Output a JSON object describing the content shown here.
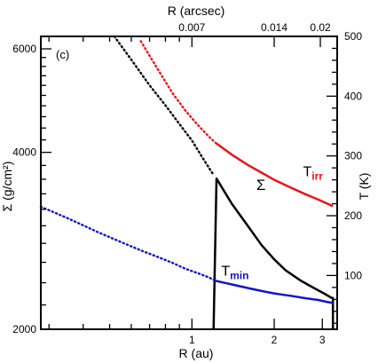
{
  "chart_data": {
    "type": "line",
    "panel_label": "(c)",
    "x_axis_bottom": {
      "label": "R (au)",
      "scale": "log",
      "range": [
        0.28,
        3.4
      ],
      "ticks": [
        {
          "value": 1,
          "label": "1"
        },
        {
          "value": 2,
          "label": "2"
        },
        {
          "value": 3,
          "label": "3"
        }
      ]
    },
    "x_axis_top": {
      "label": "R (arcsec)",
      "ticks": [
        {
          "au": 1.0,
          "label": "0.007"
        },
        {
          "au": 2.0,
          "label": "0.014"
        },
        {
          "au": 2.95,
          "label": "0.02"
        }
      ]
    },
    "y_axis_left": {
      "label": "Σ (g/cm²)",
      "scale": "log",
      "range": [
        2000,
        6300
      ],
      "ticks": [
        {
          "value": 2000,
          "label": "2000"
        },
        {
          "value": 4000,
          "label": "4000"
        },
        {
          "value": 6000,
          "label": "6000"
        }
      ]
    },
    "y_axis_right": {
      "label": "T (K)",
      "scale": "linear",
      "range": [
        10,
        500
      ],
      "ticks": [
        {
          "value": 100,
          "label": "100"
        },
        {
          "value": 200,
          "label": "200"
        },
        {
          "value": 300,
          "label": "300"
        },
        {
          "value": 400,
          "label": "400"
        },
        {
          "value": 500,
          "label": "500"
        }
      ]
    },
    "series": [
      {
        "name": "Σ",
        "axis": "left",
        "color": "#000000",
        "dotted": {
          "x": [
            0.52,
            0.6,
            0.7,
            0.8,
            0.9,
            1.0,
            1.1,
            1.2
          ],
          "y": [
            6300,
            5750,
            5200,
            4810,
            4470,
            4190,
            3900,
            3660
          ]
        },
        "solid": {
          "x": [
            1.2,
            1.23,
            1.4,
            1.6,
            1.8,
            2.0,
            2.2,
            2.5,
            2.8,
            3.05,
            3.25,
            3.28,
            3.28
          ],
          "y": [
            2000,
            3610,
            3270,
            3000,
            2780,
            2630,
            2520,
            2420,
            2350,
            2300,
            2260,
            2260,
            2000
          ]
        }
      },
      {
        "name": "T",
        "subscript": "irr",
        "axis": "right",
        "color": "#e8141a",
        "dotted": {
          "x": [
            0.65,
            0.75,
            0.85,
            0.95,
            1.05,
            1.15,
            1.22
          ],
          "y": [
            492,
            445,
            405,
            375,
            352,
            333,
            322
          ]
        },
        "solid": {
          "x": [
            1.22,
            1.4,
            1.6,
            1.8,
            2.0,
            2.3,
            2.6,
            2.9,
            3.1,
            3.28
          ],
          "y": [
            322,
            302,
            285,
            272,
            260,
            247,
            236,
            227,
            221,
            216
          ]
        }
      },
      {
        "name": "T",
        "subscript": "min",
        "axis": "right",
        "color": "#1414c8",
        "dotted": {
          "x": [
            0.28,
            0.35,
            0.45,
            0.55,
            0.65,
            0.75,
            0.85,
            0.95,
            1.05,
            1.15,
            1.22
          ],
          "y": [
            215,
            196,
            173,
            156,
            142,
            131,
            121,
            111,
            104,
            97,
            91
          ]
        },
        "solid": {
          "x": [
            1.22,
            1.4,
            1.6,
            1.8,
            2.0,
            2.3,
            2.6,
            2.9,
            3.1,
            3.28
          ],
          "y": [
            91,
            85,
            79,
            74,
            70,
            66,
            62,
            59,
            56,
            54
          ]
        }
      }
    ],
    "annotations": [
      {
        "text": "Σ",
        "x": 1.72,
        "y_left": 3450,
        "color": "#000000"
      },
      {
        "text": "T",
        "subscript": "irr",
        "x": 2.55,
        "y_right": 266,
        "color": "#e8141a"
      },
      {
        "text": "T",
        "subscript": "min",
        "x": 1.28,
        "y_right": 100,
        "color": "#1414c8"
      }
    ]
  }
}
